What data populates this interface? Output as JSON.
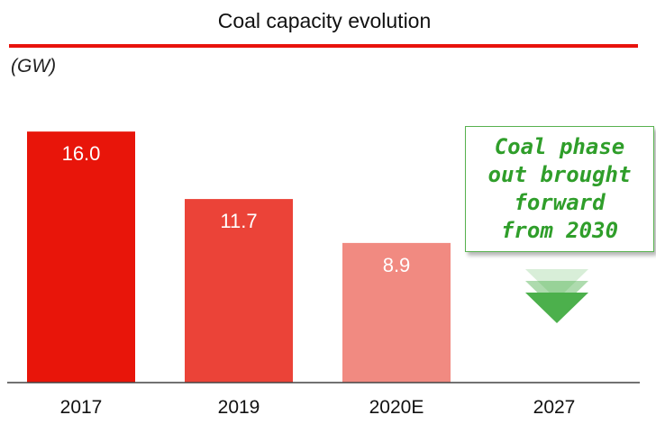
{
  "header": {
    "title": "Coal capacity evolution",
    "unit": "(GW)"
  },
  "callout": {
    "text": "Coal phase\nout brought\nforward\n from 2030"
  },
  "colors": {
    "title_rule": "#e8120c",
    "bar_2017": "#e8150a",
    "bar_2019": "#eb4338",
    "bar_2020E": "#f18a81",
    "arrow": "#4cb04c",
    "callout_text": "#2f9e2a"
  },
  "chart_data": {
    "type": "bar",
    "title": "Coal capacity evolution",
    "ylabel": "(GW)",
    "xlabel": "",
    "categories": [
      "2017",
      "2019",
      "2020E",
      "2027"
    ],
    "values": [
      16.0,
      11.7,
      8.9,
      null
    ],
    "labels": [
      "16.0",
      "11.7",
      "8.9",
      ""
    ],
    "ylim": [
      0,
      17.5
    ],
    "grid": false,
    "annotation": "Coal phase out brought forward from 2030"
  }
}
